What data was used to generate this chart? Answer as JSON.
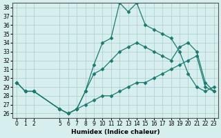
{
  "xlabel": "Humidex (Indice chaleur)",
  "bg_color": "#d6eeee",
  "grid_color": "#aacccc",
  "line_color": "#1a7a6e",
  "xlim": [
    -0.5,
    23.5
  ],
  "ylim": [
    25.5,
    38.5
  ],
  "yticks": [
    26,
    27,
    28,
    29,
    30,
    31,
    32,
    33,
    34,
    35,
    36,
    37,
    38
  ],
  "xticks": [
    0,
    1,
    2,
    5,
    6,
    7,
    8,
    9,
    10,
    11,
    12,
    13,
    14,
    15,
    16,
    17,
    18,
    19,
    20,
    21,
    22,
    23
  ],
  "line1_x": [
    0,
    1,
    2,
    5,
    6,
    7,
    8,
    9,
    10,
    11,
    12,
    13,
    14,
    15,
    16,
    17,
    18,
    19,
    20,
    21,
    22,
    23
  ],
  "line1_y": [
    29.5,
    28.5,
    28.5,
    26.5,
    26.0,
    26.5,
    28.5,
    31.5,
    34.0,
    34.5,
    38.5,
    37.5,
    38.5,
    36.0,
    35.5,
    35.0,
    34.5,
    33.0,
    30.5,
    29.0,
    28.5,
    29.0
  ],
  "line2_x": [
    0,
    1,
    2,
    5,
    6,
    7,
    8,
    9,
    10,
    11,
    12,
    13,
    14,
    15,
    16,
    17,
    18,
    19,
    20,
    21,
    22,
    23
  ],
  "line2_y": [
    29.5,
    28.5,
    28.5,
    26.5,
    26.0,
    26.5,
    28.5,
    30.5,
    31.0,
    32.0,
    33.0,
    33.5,
    34.0,
    33.5,
    33.0,
    32.5,
    32.0,
    33.5,
    34.0,
    33.0,
    29.5,
    28.5
  ],
  "line3_x": [
    0,
    1,
    2,
    5,
    6,
    7,
    8,
    9,
    10,
    11,
    12,
    13,
    14,
    15,
    16,
    17,
    18,
    19,
    20,
    21,
    22,
    23
  ],
  "line3_y": [
    29.5,
    28.5,
    28.5,
    26.5,
    26.0,
    26.5,
    27.0,
    27.5,
    28.0,
    28.0,
    28.5,
    29.0,
    29.5,
    29.5,
    30.0,
    30.5,
    31.0,
    31.5,
    32.0,
    32.5,
    29.0,
    28.5
  ]
}
